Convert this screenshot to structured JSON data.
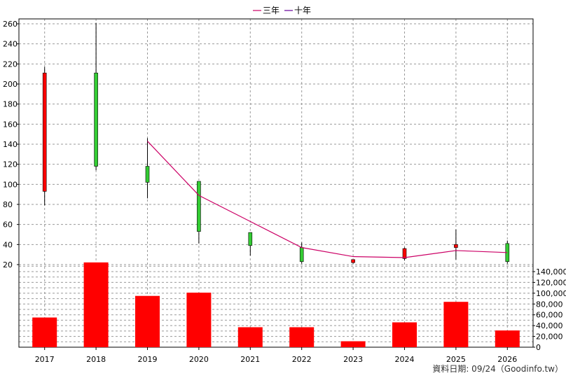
{
  "chart_data": {
    "type": "candlestick+line+bar",
    "categories": [
      "2017",
      "2018",
      "2019",
      "2020",
      "2021",
      "2022",
      "2023",
      "2024",
      "2025",
      "2026"
    ],
    "candles": [
      {
        "year": "2017",
        "open": 211,
        "close": 93,
        "high": 217,
        "low": 79
      },
      {
        "year": "2018",
        "open": 118,
        "close": 211,
        "high": 261,
        "low": 114
      },
      {
        "year": "2019",
        "open": 102,
        "close": 118,
        "high": 146,
        "low": 86
      },
      {
        "year": "2020",
        "open": 53,
        "close": 103,
        "high": 103,
        "low": 41
      },
      {
        "year": "2021",
        "open": 39,
        "close": 52,
        "high": 52,
        "low": 29
      },
      {
        "year": "2022",
        "open": 23,
        "close": 37,
        "high": 42,
        "low": 21
      },
      {
        "year": "2023",
        "open": 25,
        "close": 22,
        "high": 25,
        "low": 21
      },
      {
        "year": "2024",
        "open": 36,
        "close": 26,
        "high": 37,
        "low": 24
      },
      {
        "year": "2025",
        "open": 40,
        "close": 37,
        "high": 55,
        "low": 25
      },
      {
        "year": "2026",
        "open": 23,
        "close": 41,
        "high": 44,
        "low": 21
      }
    ],
    "colors": {
      "up": "#33cc33",
      "down": "#ff0000",
      "volume": "#ff0000",
      "line_3y": "#cc0066",
      "line_10y": "#660099"
    },
    "series": [
      {
        "name": "三年",
        "type": "line",
        "x": [
          "2019",
          "2020",
          "2021",
          "2022",
          "2023",
          "2024",
          "2025",
          "2026"
        ],
        "values": [
          143,
          89,
          63,
          37,
          28,
          27,
          34,
          32
        ]
      },
      {
        "name": "十年",
        "type": "line",
        "x": [],
        "values": []
      }
    ],
    "volume": [
      55000,
      157000,
      95000,
      101000,
      37000,
      37000,
      11000,
      46000,
      84000,
      31000
    ],
    "price_axis": {
      "ticks": [
        20,
        40,
        60,
        80,
        100,
        120,
        140,
        160,
        180,
        200,
        220,
        240,
        260
      ],
      "range": [
        17,
        265
      ]
    },
    "volume_axis": {
      "ticks": [
        "0",
        "20,000",
        "40,000",
        "60,000",
        "80,000",
        "100,000",
        "120,000",
        "140,000"
      ],
      "max": 160000
    },
    "legend_position": "top-center",
    "grid": true,
    "source_note": "資料日期: 09/24（Goodinfo.tw）"
  }
}
